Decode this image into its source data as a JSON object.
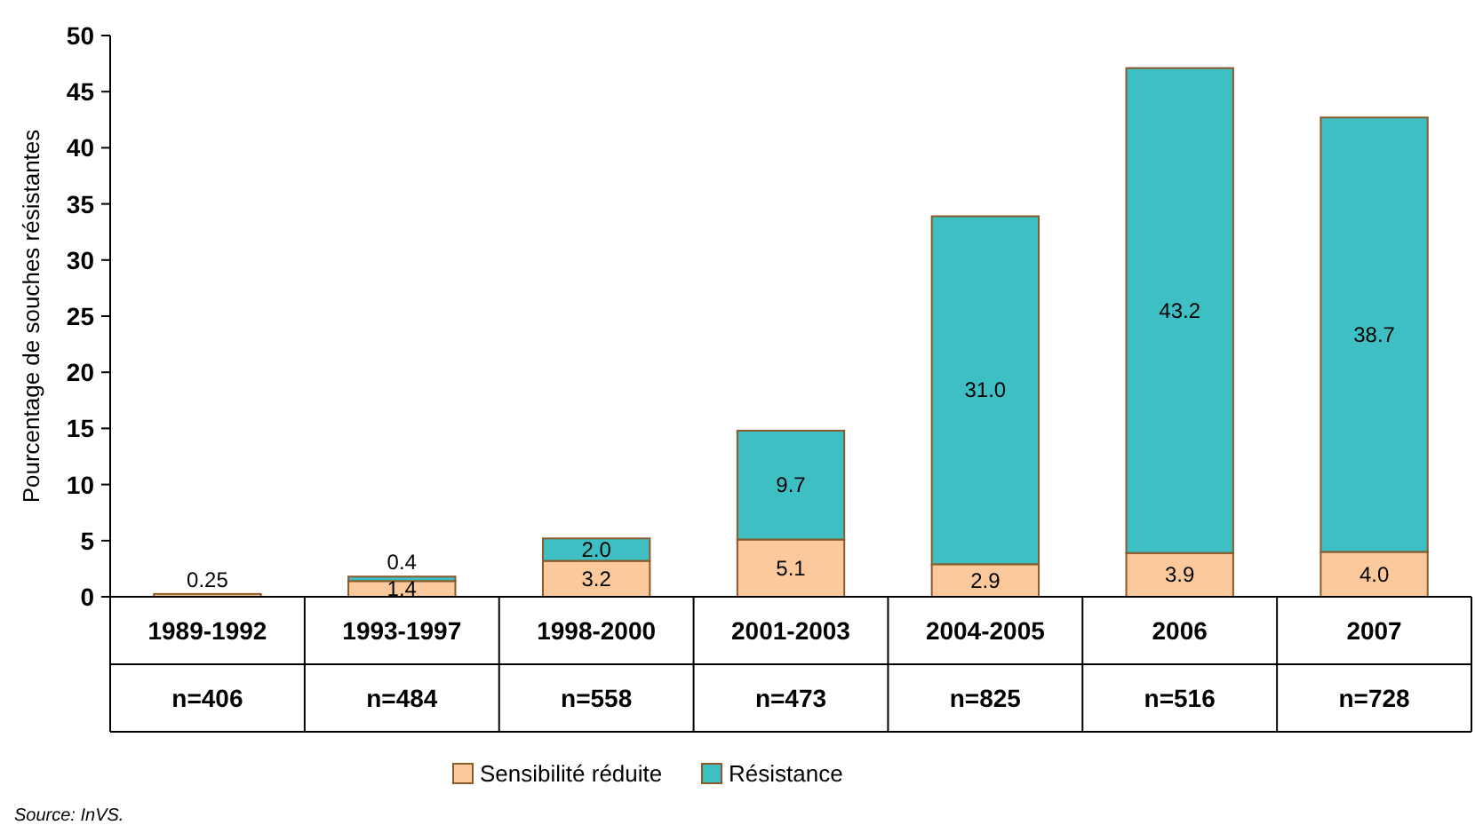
{
  "chart_data": {
    "type": "bar",
    "stacked": true,
    "ylabel": "Pourcentage de souches résistantes",
    "categories": [
      "1989-1992\nn=406",
      "1993-1997\nn=484",
      "1998-2000\nn=558",
      "2001-2003\nn=473",
      "2004-2005\nn=825",
      "2006\nn=516",
      "2007\nn=728"
    ],
    "series": [
      {
        "name": "Sensibilité réduite",
        "color": "#fbc99b",
        "values": [
          0.25,
          1.4,
          3.2,
          5.1,
          2.9,
          3.9,
          4.0
        ],
        "value_labels": [
          "0.25",
          "1.4",
          "3.2",
          "5.1",
          "2.9",
          "3.9",
          "4.0"
        ]
      },
      {
        "name": "Résistance",
        "color": "#3dbfc4",
        "values": [
          null,
          0.4,
          2.0,
          9.7,
          31.0,
          43.2,
          38.7
        ],
        "value_labels": [
          null,
          "0.4",
          "2.0",
          "9.7",
          "31.0",
          "43.2",
          "38.7"
        ]
      }
    ],
    "ylim": [
      0,
      50
    ],
    "yticks": [
      0,
      5,
      10,
      15,
      20,
      25,
      30,
      35,
      40,
      45,
      50
    ],
    "grid": false,
    "legend": "bottom",
    "annotations": [
      "Source: InVS."
    ]
  }
}
